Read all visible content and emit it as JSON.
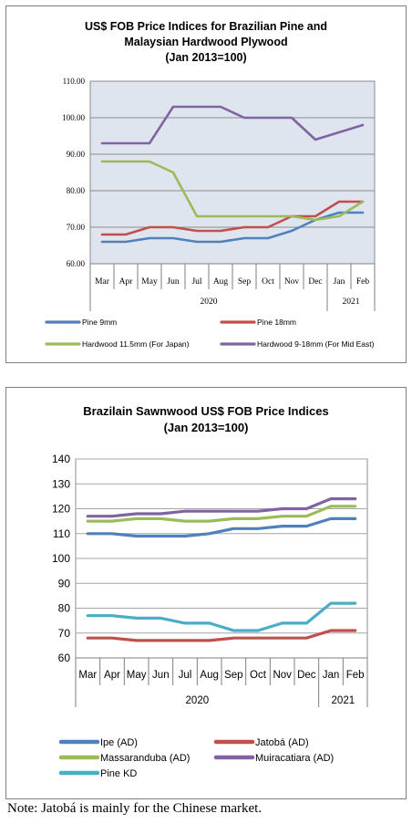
{
  "chart_data": [
    {
      "type": "line",
      "title": "US$ FOB Price Indices for Brazilian Pine and Malaysian Hardwood Plywood",
      "subtitle": "(Jan 2013=100)",
      "title_lines": [
        "US$ FOB Price Indices for Brazilian  Pine and",
        "Malaysian Hardwood Plywood",
        "(Jan 2013=100)"
      ],
      "categories": [
        "Mar",
        "Apr",
        "May",
        "Jun",
        "Jul",
        "Aug",
        "Sep",
        "Oct",
        "Nov",
        "Dec",
        "Jan",
        "Feb"
      ],
      "year_labels": [
        "2020",
        "2021"
      ],
      "ylim": [
        60,
        110
      ],
      "yticks": [
        "60.00",
        "70.00",
        "80.00",
        "90.00",
        "100.00",
        "110.00"
      ],
      "grid": "horizontal",
      "legend_position": "bottom",
      "series": [
        {
          "name": "Pine 9mm",
          "color": "#4f81bd",
          "values": [
            66,
            66,
            67,
            67,
            66,
            66,
            67,
            67,
            69,
            72,
            74,
            74
          ]
        },
        {
          "name": "Pine 18mm",
          "color": "#c0504d",
          "values": [
            68,
            68,
            70,
            70,
            69,
            69,
            70,
            70,
            73,
            73,
            77,
            77
          ]
        },
        {
          "name": "Hardwood 11.5mm (For Japan)",
          "color": "#9bbb59",
          "values": [
            88,
            88,
            88,
            85,
            73,
            73,
            73,
            73,
            73,
            72,
            73,
            77
          ]
        },
        {
          "name": "Hardwood 9-18mm (For Mid East)",
          "color": "#8064a2",
          "values": [
            93,
            93,
            93,
            103,
            103,
            103,
            100,
            100,
            100,
            94,
            96,
            98
          ]
        }
      ]
    },
    {
      "type": "line",
      "title": "Brazilain Sawnwood US$ FOB Price Indices",
      "subtitle": "(Jan 2013=100)",
      "title_lines": [
        "Brazilain Sawnwood US$ FOB Price Indices",
        "(Jan 2013=100)"
      ],
      "categories": [
        "Mar",
        "Apr",
        "May",
        "Jun",
        "Jul",
        "Aug",
        "Sep",
        "Oct",
        "Nov",
        "Dec",
        "Jan",
        "Feb"
      ],
      "year_labels": [
        "2020",
        "2021"
      ],
      "ylim": [
        60,
        140
      ],
      "yticks": [
        "60",
        "70",
        "80",
        "90",
        "100",
        "110",
        "120",
        "130",
        "140"
      ],
      "grid": "horizontal",
      "legend_position": "bottom",
      "series": [
        {
          "name": "Ipe (AD)",
          "color": "#4f81bd",
          "values": [
            110,
            110,
            109,
            109,
            109,
            110,
            112,
            112,
            113,
            113,
            116,
            116
          ]
        },
        {
          "name": "Jatobá (AD)",
          "color": "#c0504d",
          "values": [
            68,
            68,
            67,
            67,
            67,
            67,
            68,
            68,
            68,
            68,
            71,
            71
          ]
        },
        {
          "name": "Massaranduba (AD)",
          "color": "#9bbb59",
          "values": [
            115,
            115,
            116,
            116,
            115,
            115,
            116,
            116,
            117,
            117,
            121,
            121
          ]
        },
        {
          "name": "Muiracatiara (AD)",
          "color": "#8064a2",
          "values": [
            117,
            117,
            118,
            118,
            119,
            119,
            119,
            119,
            120,
            120,
            124,
            124
          ]
        },
        {
          "name": "Pine KD",
          "color": "#4bacc6",
          "values": [
            77,
            77,
            76,
            76,
            74,
            74,
            71,
            71,
            74,
            74,
            82,
            82
          ]
        }
      ]
    }
  ],
  "note": "Note: Jatobá is mainly for the Chinese market."
}
